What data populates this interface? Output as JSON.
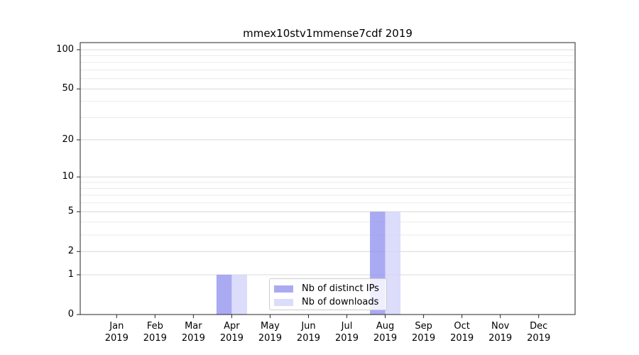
{
  "title": "mmex10stv1mmense7cdf 2019",
  "chart_data": {
    "type": "bar",
    "title": "mmex10stv1mmense7cdf 2019",
    "xlabel": "",
    "ylabel": "",
    "months": [
      "Jan",
      "Feb",
      "Mar",
      "Apr",
      "May",
      "Jun",
      "Jul",
      "Aug",
      "Sep",
      "Oct",
      "Nov",
      "Dec"
    ],
    "year": "2019",
    "series": [
      {
        "name": "Nb of distinct IPs",
        "color": "#9292f0",
        "opacity": 0.78,
        "values": [
          0,
          0,
          0,
          1,
          0,
          0,
          0,
          5,
          0,
          0,
          0,
          0
        ]
      },
      {
        "name": "Nb of downloads",
        "color": "#d4d4fa",
        "opacity": 0.82,
        "values": [
          0,
          0,
          0,
          1,
          0,
          0,
          0,
          5,
          0,
          0,
          0,
          0
        ]
      }
    ],
    "yscale": "log1p",
    "yticks": [
      0,
      1,
      2,
      5,
      10,
      20,
      50,
      100
    ],
    "minor_gridlines": [
      3,
      4,
      6,
      7,
      8,
      9,
      30,
      40,
      60,
      70,
      80,
      90
    ],
    "ylim": [
      0,
      113
    ],
    "grid": true,
    "legend_position": "inside-bottom-center",
    "colors": {
      "major_gridline": "#d8d8d8",
      "minor_gridline": "#ebebeb",
      "spine": "#262626"
    }
  }
}
